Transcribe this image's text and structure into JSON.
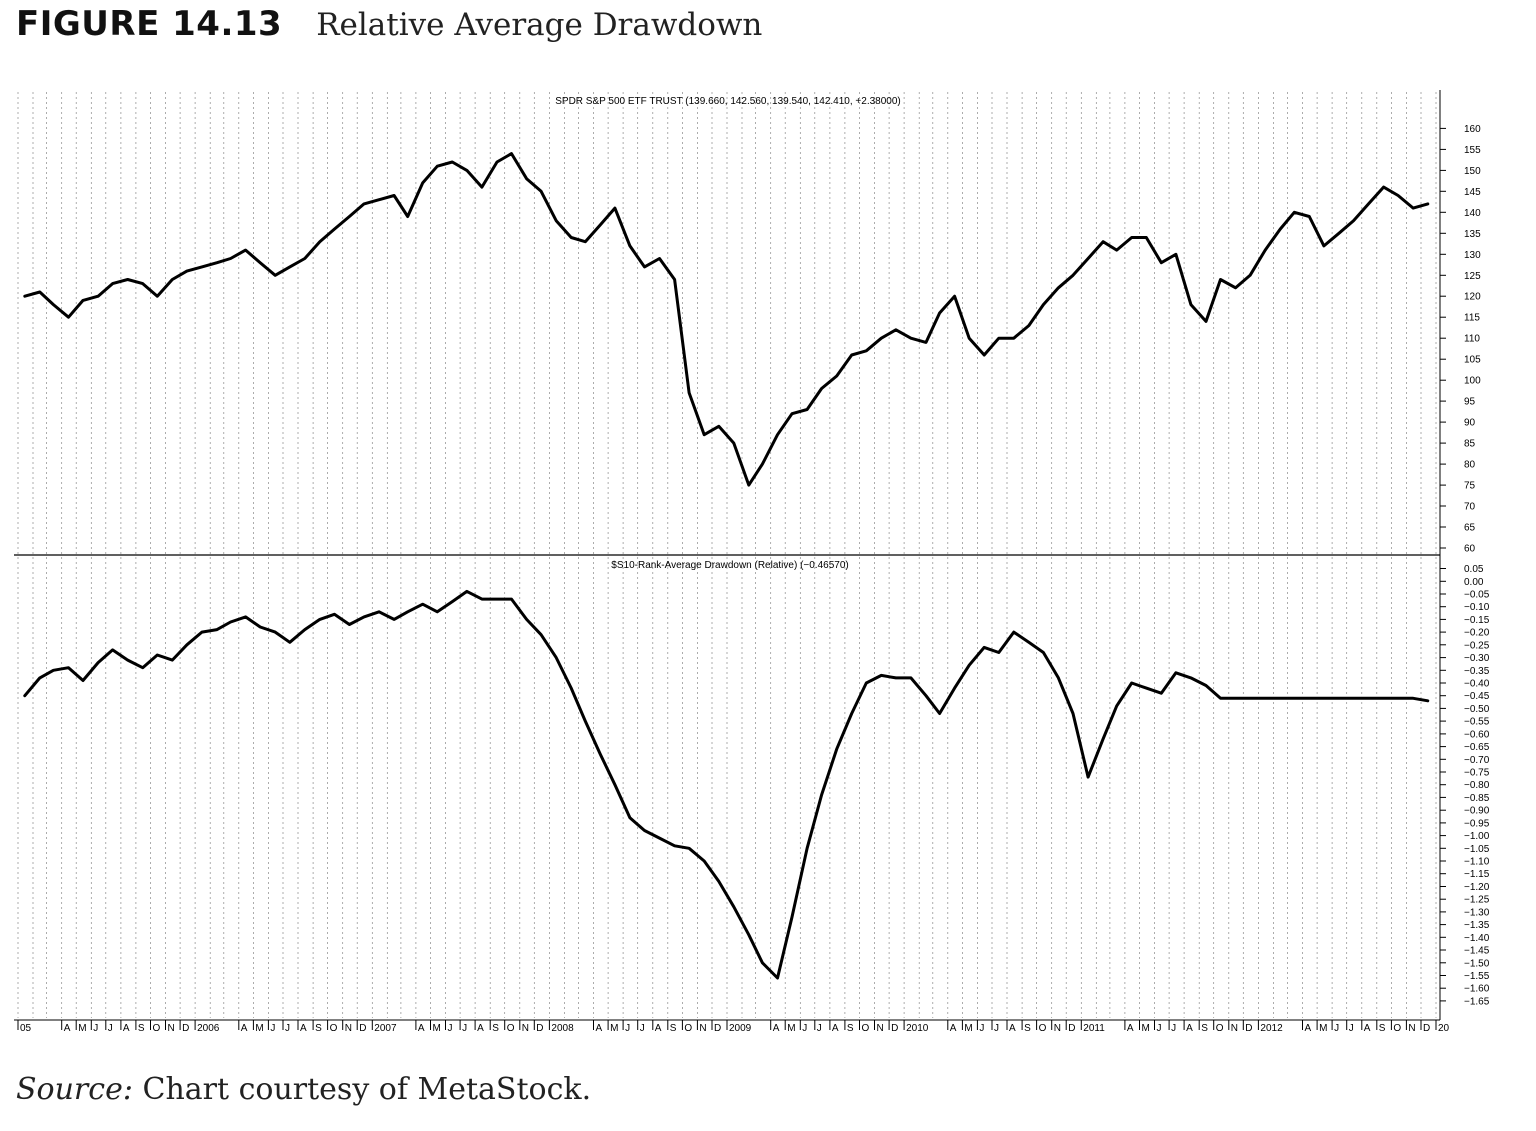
{
  "figure": {
    "label": "FIGURE 14.13",
    "title": "Relative Average Drawdown",
    "source_label": "Source:",
    "source_text": "Chart courtesy of MetaStock."
  },
  "chart_data": [
    {
      "type": "line",
      "title": "SPDR S&P 500 ETF TRUST (139.660, 142.560, 139.540, 142.410, +2.38000)",
      "ylim": [
        60,
        162
      ],
      "yticks": [
        160,
        155,
        150,
        145,
        140,
        135,
        130,
        125,
        120,
        115,
        110,
        105,
        100,
        95,
        90,
        85,
        80,
        75,
        70,
        65,
        60
      ],
      "grid": "vertical dotted, one per month",
      "series": [
        {
          "x": [
            "2005-01",
            "2005-02",
            "2005-03",
            "2005-04",
            "2005-05",
            "2005-06",
            "2005-07",
            "2005-08",
            "2005-09",
            "2005-10",
            "2005-11",
            "2005-12",
            "2006-01",
            "2006-02",
            "2006-03",
            "2006-04",
            "2006-05",
            "2006-06",
            "2006-07",
            "2006-08",
            "2006-09",
            "2006-10",
            "2006-11",
            "2006-12",
            "2007-01",
            "2007-02",
            "2007-03",
            "2007-04",
            "2007-05",
            "2007-06",
            "2007-07",
            "2007-08",
            "2007-09",
            "2007-10",
            "2007-11",
            "2007-12",
            "2008-01",
            "2008-02",
            "2008-03",
            "2008-04",
            "2008-05",
            "2008-06",
            "2008-07",
            "2008-08",
            "2008-09",
            "2008-10",
            "2008-11",
            "2008-12",
            "2009-01",
            "2009-02",
            "2009-03",
            "2009-04",
            "2009-05",
            "2009-06",
            "2009-07",
            "2009-08",
            "2009-09",
            "2009-10",
            "2009-11",
            "2009-12",
            "2010-01",
            "2010-02",
            "2010-03",
            "2010-04",
            "2010-05",
            "2010-06",
            "2010-07",
            "2010-08",
            "2010-09",
            "2010-10",
            "2010-11",
            "2010-12",
            "2011-01",
            "2011-02",
            "2011-03",
            "2011-04",
            "2011-05",
            "2011-06",
            "2011-07",
            "2011-08",
            "2011-09",
            "2011-10",
            "2011-11",
            "2011-12",
            "2012-01",
            "2012-02",
            "2012-03",
            "2012-04",
            "2012-05",
            "2012-06",
            "2012-07",
            "2012-08",
            "2012-09",
            "2012-10",
            "2012-11",
            "2012-12"
          ],
          "values": [
            120,
            121,
            118,
            115,
            119,
            120,
            123,
            124,
            123,
            120,
            124,
            126,
            127,
            128,
            129,
            131,
            128,
            125,
            127,
            129,
            133,
            136,
            139,
            142,
            143,
            144,
            139,
            147,
            151,
            152,
            150,
            146,
            152,
            154,
            148,
            145,
            138,
            134,
            133,
            137,
            141,
            132,
            127,
            129,
            124,
            97,
            87,
            89,
            85,
            75,
            80,
            87,
            92,
            93,
            98,
            101,
            106,
            107,
            110,
            112,
            110,
            109,
            116,
            120,
            110,
            106,
            110,
            110,
            113,
            118,
            122,
            125,
            129,
            133,
            131,
            134,
            134,
            128,
            130,
            118,
            114,
            124,
            122,
            125,
            131,
            136,
            140,
            139,
            132,
            135,
            138,
            142,
            146,
            144,
            141,
            142
          ]
        }
      ]
    },
    {
      "type": "line",
      "title": "$S10-Rank-Average Drawdown (Relative) (−0.46570)",
      "ylim": [
        -1.67,
        0.06
      ],
      "yticks": [
        0.05,
        0.0,
        -0.05,
        -0.1,
        -0.15,
        -0.2,
        -0.25,
        -0.3,
        -0.35,
        -0.4,
        -0.45,
        -0.5,
        -0.55,
        -0.6,
        -0.65,
        -0.7,
        -0.75,
        -0.8,
        -0.85,
        -0.9,
        -0.95,
        -1.0,
        -1.05,
        -1.1,
        -1.15,
        -1.2,
        -1.25,
        -1.3,
        -1.35,
        -1.4,
        -1.45,
        -1.5,
        -1.55,
        -1.6,
        -1.65
      ],
      "ytick_labels": [
        "0.05",
        "0.00",
        "−0.05",
        "−0.10",
        "−0.15",
        "−0.20",
        "−0.25",
        "−0.30",
        "−0.35",
        "−0.40",
        "−0.45",
        "−0.50",
        "−0.55",
        "−0.60",
        "−0.65",
        "−0.70",
        "−0.75",
        "−0.80",
        "−0.85",
        "−0.90",
        "−0.95",
        "−1.00",
        "−1.05",
        "−1.10",
        "−1.15",
        "−1.20",
        "−1.25",
        "−1.30",
        "−1.35",
        "−1.40",
        "−1.45",
        "−1.50",
        "−1.55",
        "−1.60",
        "−1.65"
      ],
      "grid": "vertical dotted, one per month",
      "series": [
        {
          "x": [
            "2005-01",
            "2005-02",
            "2005-03",
            "2005-04",
            "2005-05",
            "2005-06",
            "2005-07",
            "2005-08",
            "2005-09",
            "2005-10",
            "2005-11",
            "2005-12",
            "2006-01",
            "2006-02",
            "2006-03",
            "2006-04",
            "2006-05",
            "2006-06",
            "2006-07",
            "2006-08",
            "2006-09",
            "2006-10",
            "2006-11",
            "2006-12",
            "2007-01",
            "2007-02",
            "2007-03",
            "2007-04",
            "2007-05",
            "2007-06",
            "2007-07",
            "2007-08",
            "2007-09",
            "2007-10",
            "2007-11",
            "2007-12",
            "2008-01",
            "2008-02",
            "2008-03",
            "2008-04",
            "2008-05",
            "2008-06",
            "2008-07",
            "2008-08",
            "2008-09",
            "2008-10",
            "2008-11",
            "2008-12",
            "2009-01",
            "2009-02",
            "2009-03",
            "2009-04",
            "2009-05",
            "2009-06",
            "2009-07",
            "2009-08",
            "2009-09",
            "2009-10",
            "2009-11",
            "2009-12",
            "2010-01",
            "2010-02",
            "2010-03",
            "2010-04",
            "2010-05",
            "2010-06",
            "2010-07",
            "2010-08",
            "2010-09",
            "2010-10",
            "2010-11",
            "2010-12",
            "2011-01",
            "2011-02",
            "2011-03",
            "2011-04",
            "2011-05",
            "2011-06",
            "2011-07",
            "2011-08",
            "2011-09",
            "2011-10",
            "2011-11",
            "2011-12",
            "2012-01",
            "2012-02",
            "2012-03",
            "2012-04",
            "2012-05",
            "2012-06",
            "2012-07",
            "2012-08",
            "2012-09",
            "2012-10",
            "2012-11",
            "2012-12"
          ],
          "values": [
            -0.45,
            -0.38,
            -0.35,
            -0.34,
            -0.39,
            -0.32,
            -0.27,
            -0.31,
            -0.34,
            -0.29,
            -0.31,
            -0.25,
            -0.2,
            -0.19,
            -0.16,
            -0.14,
            -0.18,
            -0.2,
            -0.24,
            -0.19,
            -0.15,
            -0.13,
            -0.17,
            -0.14,
            -0.12,
            -0.15,
            -0.12,
            -0.09,
            -0.12,
            -0.08,
            -0.04,
            -0.07,
            -0.07,
            -0.07,
            -0.15,
            -0.21,
            -0.3,
            -0.42,
            -0.55,
            -0.68,
            -0.8,
            -0.93,
            -0.98,
            -1.01,
            -1.04,
            -1.05,
            -1.1,
            -1.18,
            -1.28,
            -1.39,
            -1.5,
            -1.56,
            -1.32,
            -1.05,
            -0.84,
            -0.66,
            -0.52,
            -0.4,
            -0.37,
            -0.38,
            -0.38,
            -0.45,
            -0.52,
            -0.42,
            -0.33,
            -0.26,
            -0.28,
            -0.2,
            -0.24,
            -0.28,
            -0.38,
            -0.52,
            -0.77,
            -0.62,
            -0.49,
            -0.4,
            -0.42,
            -0.44,
            -0.36,
            -0.38,
            -0.41,
            -0.46,
            -0.46,
            -0.46,
            -0.46,
            -0.46,
            -0.46,
            -0.46,
            -0.46,
            -0.46,
            -0.46,
            -0.46,
            -0.46,
            -0.46,
            -0.46,
            -0.47
          ]
        }
      ]
    }
  ],
  "x_axis": {
    "labels": [
      "05",
      "A",
      "M",
      "J",
      "J",
      "A",
      "S",
      "O",
      "N",
      "D",
      "2006",
      "A",
      "M",
      "J",
      "J",
      "A",
      "S",
      "O",
      "N",
      "D",
      "2007",
      "A",
      "M",
      "J",
      "J",
      "A",
      "S",
      "O",
      "N",
      "D",
      "2008",
      "A",
      "M",
      "J",
      "J",
      "A",
      "S",
      "O",
      "N",
      "D",
      "2009",
      "A",
      "M",
      "J",
      "J",
      "A",
      "S",
      "O",
      "N",
      "D",
      "2010",
      "A",
      "M",
      "J",
      "J",
      "A",
      "S",
      "O",
      "N",
      "D",
      "2011",
      "A",
      "M",
      "J",
      "J",
      "A",
      "S",
      "O",
      "N",
      "D",
      "2012",
      "A",
      "M",
      "J",
      "J",
      "A",
      "S",
      "O",
      "N",
      "D",
      "20"
    ],
    "label_months": [
      "2005-01",
      "2005-04",
      "2005-05",
      "2005-06",
      "2005-07",
      "2005-08",
      "2005-09",
      "2005-10",
      "2005-11",
      "2005-12",
      "2006-01",
      "2006-04",
      "2006-05",
      "2006-06",
      "2006-07",
      "2006-08",
      "2006-09",
      "2006-10",
      "2006-11",
      "2006-12",
      "2007-01",
      "2007-04",
      "2007-05",
      "2007-06",
      "2007-07",
      "2007-08",
      "2007-09",
      "2007-10",
      "2007-11",
      "2007-12",
      "2008-01",
      "2008-04",
      "2008-05",
      "2008-06",
      "2008-07",
      "2008-08",
      "2008-09",
      "2008-10",
      "2008-11",
      "2008-12",
      "2009-01",
      "2009-04",
      "2009-05",
      "2009-06",
      "2009-07",
      "2009-08",
      "2009-09",
      "2009-10",
      "2009-11",
      "2009-12",
      "2010-01",
      "2010-04",
      "2010-05",
      "2010-06",
      "2010-07",
      "2010-08",
      "2010-09",
      "2010-10",
      "2010-11",
      "2010-12",
      "2011-01",
      "2011-04",
      "2011-05",
      "2011-06",
      "2011-07",
      "2011-08",
      "2011-09",
      "2011-10",
      "2011-11",
      "2011-12",
      "2012-01",
      "2012-04",
      "2012-05",
      "2012-06",
      "2012-07",
      "2012-08",
      "2012-09",
      "2012-10",
      "2012-11",
      "2012-12",
      "2013-01"
    ]
  }
}
